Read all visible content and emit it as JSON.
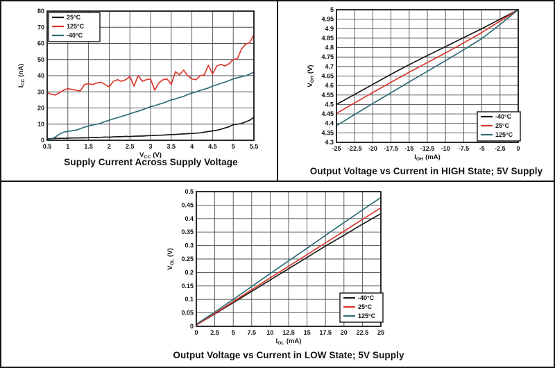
{
  "colors": {
    "black": "#1a1a1a",
    "red": "#dd392c",
    "teal": "#2f6e78"
  },
  "chart_data": [
    {
      "type": "line",
      "title": "Supply Current Across Supply Voltage",
      "x_axis": {
        "label": "VCC (V)",
        "label_main": "V",
        "label_sub": "CC",
        "label_unit": "(V)",
        "min": 0.5,
        "max": 5.5,
        "ticks": [
          "0.5",
          "1",
          "1.5",
          "2",
          "2.5",
          "3",
          "3.5",
          "4",
          "4.5",
          "5",
          "5.5"
        ]
      },
      "y_axis": {
        "label": "ICC (nA)",
        "label_main": "I",
        "label_sub": "CC",
        "label_unit": "(nA)",
        "min": 0,
        "max": 80,
        "ticks": [
          "0",
          "10",
          "20",
          "30",
          "40",
          "50",
          "60",
          "70",
          "80"
        ]
      },
      "legend": {
        "position": "top-left",
        "entries": [
          {
            "label": "25°C",
            "color": "black"
          },
          {
            "label": "125°C",
            "color": "red"
          },
          {
            "label": "-40°C",
            "color": "teal"
          }
        ]
      },
      "series": [
        {
          "name": "25°C",
          "color": "black",
          "x0": 0.5,
          "dx": 0.1,
          "values": [
            1,
            1,
            1.1,
            1.2,
            1.2,
            1.3,
            1.4,
            1.4,
            1.5,
            1.5,
            1.6,
            1.7,
            1.7,
            1.8,
            2,
            1.9,
            2.1,
            2.2,
            2.2,
            2.4,
            2.3,
            2.5,
            2.6,
            2.6,
            2.8,
            2.9,
            3,
            3.1,
            3.2,
            3.4,
            3.5,
            3.6,
            3.8,
            3.9,
            4.1,
            4.2,
            4.4,
            4.6,
            5,
            5.4,
            5.8,
            6.2,
            6.8,
            7.6,
            8.4,
            9.6,
            10,
            10.4,
            11.4,
            12.4,
            14.2
          ]
        },
        {
          "name": "125°C",
          "color": "red",
          "x0": 0.5,
          "dx": 0.1,
          "values": [
            29.5,
            28.5,
            28,
            29.5,
            31,
            32,
            31.5,
            31,
            30.5,
            34.5,
            35,
            34.5,
            35.5,
            36,
            34.5,
            33,
            36.5,
            37.5,
            36.5,
            37.5,
            39.5,
            33.5,
            40,
            36.5,
            37.5,
            38,
            31,
            35.5,
            37.5,
            38,
            34.5,
            42.5,
            40.5,
            43.5,
            40,
            38,
            37.5,
            40,
            40.5,
            46.5,
            41,
            46,
            47,
            46,
            47.5,
            50,
            50.5,
            56.5,
            59.5,
            60.5,
            65.5
          ]
        },
        {
          "name": "-40°C",
          "color": "teal",
          "x0": 0.5,
          "dx": 0.1,
          "values": [
            0.5,
            0.8,
            2,
            3.8,
            5,
            5.6,
            5.9,
            6.3,
            7.2,
            8.1,
            8.9,
            9.4,
            10,
            10.6,
            11.6,
            12.4,
            13.2,
            14,
            14.7,
            15.6,
            16.4,
            17.3,
            18,
            18.9,
            19.8,
            20.8,
            21.4,
            22.3,
            23,
            24,
            25,
            25.6,
            26.5,
            27.2,
            28.3,
            29.3,
            30,
            30.9,
            31.6,
            32.4,
            33.6,
            34.3,
            35.3,
            36,
            37,
            38,
            38.7,
            39.4,
            39.9,
            40.9,
            42.3
          ]
        }
      ]
    },
    {
      "type": "line",
      "title": "Output Voltage vs Current in HIGH State; 5V Supply",
      "x_axis": {
        "label": "IOH (mA)",
        "label_main": "I",
        "label_sub": "OH",
        "label_unit": "(mA)",
        "min": -25,
        "max": 0,
        "ticks": [
          "-25",
          "-22.5",
          "-20",
          "-17.5",
          "-15",
          "-12.5",
          "-10",
          "-7.5",
          "-5",
          "-2.5",
          "0"
        ]
      },
      "y_axis": {
        "label": "VOH (V)",
        "label_main": "V",
        "label_sub": "OH",
        "label_unit": "(V)",
        "min": 4.3,
        "max": 5,
        "ticks": [
          "4.3",
          "4.35",
          "4.4",
          "4.45",
          "4.5",
          "4.55",
          "4.6",
          "4.65",
          "4.7",
          "4.75",
          "4.8",
          "4.85",
          "4.9",
          "4.95",
          "5"
        ]
      },
      "legend": {
        "position": "bottom-right",
        "entries": [
          {
            "label": "-40°C",
            "color": "black"
          },
          {
            "label": "25°C",
            "color": "red"
          },
          {
            "label": "125°C",
            "color": "teal"
          }
        ]
      },
      "series": [
        {
          "name": "-40°C",
          "color": "black",
          "x": [
            -25,
            -22.5,
            -20,
            -17.5,
            -15,
            -12.5,
            -10,
            -7.5,
            -5,
            -2.5,
            0
          ],
          "values": [
            4.5,
            4.553,
            4.606,
            4.659,
            4.71,
            4.758,
            4.805,
            4.853,
            4.9,
            4.95,
            5.0
          ]
        },
        {
          "name": "25°C",
          "color": "red",
          "x": [
            -25,
            -22.5,
            -20,
            -17.5,
            -15,
            -12.5,
            -10,
            -7.5,
            -5,
            -2.5,
            0
          ],
          "values": [
            4.453,
            4.508,
            4.563,
            4.617,
            4.67,
            4.721,
            4.772,
            4.825,
            4.88,
            4.94,
            5.0
          ]
        },
        {
          "name": "125°C",
          "color": "teal",
          "x": [
            -25,
            -22.5,
            -20,
            -17.5,
            -15,
            -12.5,
            -10,
            -7.5,
            -5,
            -2.5,
            0
          ],
          "values": [
            4.388,
            4.447,
            4.505,
            4.562,
            4.619,
            4.675,
            4.731,
            4.789,
            4.848,
            4.922,
            5.0
          ]
        }
      ]
    },
    {
      "type": "line",
      "title": "Output Voltage vs Current in LOW State; 5V Supply",
      "x_axis": {
        "label": "IOL (mA)",
        "label_main": "I",
        "label_sub": "OL",
        "label_unit": "(mA)",
        "min": 0,
        "max": 25,
        "ticks": [
          "0",
          "2.5",
          "5",
          "7.5",
          "10",
          "12.5",
          "15",
          "17.5",
          "20",
          "22.5",
          "25"
        ]
      },
      "y_axis": {
        "label": "VOL (V)",
        "label_main": "V",
        "label_sub": "OL",
        "label_unit": "(V)",
        "min": 0,
        "max": 0.5,
        "ticks": [
          "0",
          "0.05",
          "0.1",
          "0.15",
          "0.2",
          "0.25",
          "0.3",
          "0.35",
          "0.4",
          "0.45",
          "0.5"
        ]
      },
      "legend": {
        "position": "bottom-right",
        "entries": [
          {
            "label": "-40°C",
            "color": "black"
          },
          {
            "label": "25°C",
            "color": "red"
          },
          {
            "label": "125°C",
            "color": "teal"
          }
        ]
      },
      "series": [
        {
          "name": "-40°C",
          "color": "black",
          "x": [
            0,
            2.5,
            5,
            7.5,
            10,
            12.5,
            15,
            17.5,
            20,
            22.5,
            25
          ],
          "values": [
            0.005,
            0.046,
            0.088,
            0.13,
            0.172,
            0.214,
            0.256,
            0.298,
            0.338,
            0.379,
            0.418
          ]
        },
        {
          "name": "25°C",
          "color": "red",
          "x": [
            0,
            2.5,
            5,
            7.5,
            10,
            12.5,
            15,
            17.5,
            20,
            22.5,
            25
          ],
          "values": [
            0.005,
            0.048,
            0.092,
            0.136,
            0.18,
            0.223,
            0.266,
            0.31,
            0.353,
            0.397,
            0.44
          ]
        },
        {
          "name": "125°C",
          "color": "teal",
          "x": [
            0,
            2.5,
            5,
            7.5,
            10,
            12.5,
            15,
            17.5,
            20,
            22.5,
            25
          ],
          "values": [
            0.008,
            0.053,
            0.1,
            0.148,
            0.196,
            0.243,
            0.29,
            0.338,
            0.385,
            0.432,
            0.478
          ]
        }
      ]
    }
  ]
}
